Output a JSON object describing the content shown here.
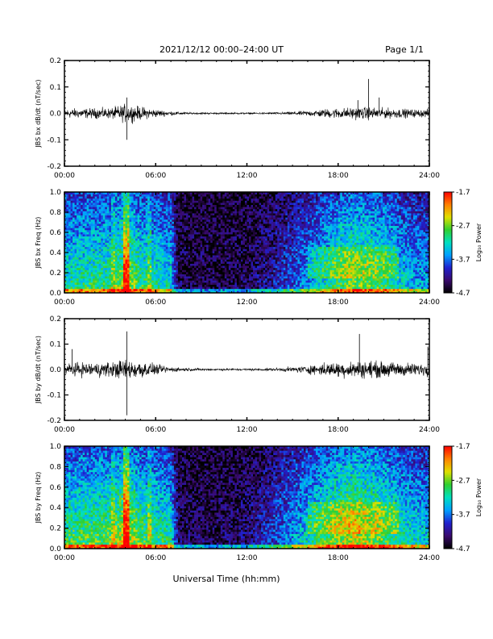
{
  "header": {
    "title": "2021/12/12  00:00–24:00 UT",
    "page": "Page 1/1"
  },
  "xlabel": "Universal Time (hh:mm)",
  "x_ticks": [
    "00:00",
    "06:00",
    "12:00",
    "18:00",
    "24:00"
  ],
  "colorbar": {
    "label": "Log₁₀ Power",
    "ticks": [
      "-1.7",
      "-2.7",
      "-3.7",
      "-4.7"
    ],
    "range": [
      -4.7,
      -1.7
    ],
    "colormap": [
      "#000000",
      "#3a0a6e",
      "#2020d0",
      "#00a0ff",
      "#00e0c0",
      "#30d030",
      "#e0e000",
      "#ff8000",
      "#ff0000"
    ]
  },
  "chart_data": [
    {
      "type": "line",
      "ylabel": "JBS bx dB/dt (nT/sec)",
      "y_ticks": [
        "0.2",
        "0.1",
        "0.0",
        "-0.1",
        "-0.2"
      ],
      "ylim": [
        -0.2,
        0.2
      ],
      "xlim_hours": [
        0,
        24
      ],
      "color": "#000000",
      "noise_envelope": {
        "hour": [
          0,
          3,
          4,
          5,
          6,
          7,
          8,
          10,
          12,
          14,
          15,
          16,
          17,
          18,
          19,
          20,
          21,
          22,
          23,
          24
        ],
        "amplitude": [
          0.018,
          0.02,
          0.035,
          0.025,
          0.015,
          0.008,
          0.004,
          0.003,
          0.003,
          0.004,
          0.006,
          0.01,
          0.016,
          0.02,
          0.022,
          0.024,
          0.02,
          0.018,
          0.015,
          0.015
        ]
      },
      "spikes": [
        {
          "hour": 4.1,
          "value": 0.06
        },
        {
          "hour": 4.1,
          "value": -0.1
        },
        {
          "hour": 20.0,
          "value": 0.13
        },
        {
          "hour": 20.7,
          "value": 0.06
        },
        {
          "hour": 19.3,
          "value": 0.05
        }
      ]
    },
    {
      "type": "heatmap",
      "ylabel": "JBS bx Freq (Hz)",
      "y_ticks": [
        "1.0",
        "0.8",
        "0.6",
        "0.4",
        "0.2",
        "0.0"
      ],
      "ylim": [
        0,
        1.0
      ],
      "xlim_hours": [
        0,
        24
      ],
      "activity": {
        "hour": [
          0,
          3,
          4,
          5,
          6,
          7,
          7.5,
          10,
          12,
          14,
          15,
          16,
          17,
          18,
          19,
          20,
          21,
          22,
          23,
          24
        ],
        "level": [
          0.55,
          0.6,
          0.75,
          0.6,
          0.55,
          0.5,
          0.1,
          0.08,
          0.1,
          0.22,
          0.3,
          0.4,
          0.5,
          0.62,
          0.68,
          0.65,
          0.6,
          0.5,
          0.42,
          0.4
        ]
      },
      "bright_columns": [
        {
          "hour": 4.1,
          "boost": 0.35
        },
        {
          "hour": 5.6,
          "boost": 0.15
        },
        {
          "hour": 3.2,
          "boost": 0.12
        }
      ]
    },
    {
      "type": "line",
      "ylabel": "JBS by dB/dt (nT/sec)",
      "y_ticks": [
        "0.2",
        "0.1",
        "0.0",
        "-0.1",
        "-0.2"
      ],
      "ylim": [
        -0.2,
        0.2
      ],
      "xlim_hours": [
        0,
        24
      ],
      "color": "#000000",
      "noise_envelope": {
        "hour": [
          0,
          3,
          4,
          5,
          6,
          7,
          8,
          10,
          12,
          14,
          15,
          16,
          17,
          18,
          19,
          20,
          21,
          22,
          23,
          24
        ],
        "amplitude": [
          0.025,
          0.03,
          0.04,
          0.035,
          0.02,
          0.01,
          0.006,
          0.004,
          0.004,
          0.006,
          0.01,
          0.016,
          0.025,
          0.03,
          0.032,
          0.035,
          0.03,
          0.028,
          0.025,
          0.025
        ]
      },
      "spikes": [
        {
          "hour": 4.1,
          "value": 0.15
        },
        {
          "hour": 4.1,
          "value": -0.18
        },
        {
          "hour": 19.4,
          "value": 0.14
        },
        {
          "hour": 23.9,
          "value": 0.09
        },
        {
          "hour": 0.5,
          "value": 0.08
        }
      ]
    },
    {
      "type": "heatmap",
      "ylabel": "JBS by Freq (Hz)",
      "y_ticks": [
        "1.0",
        "0.8",
        "0.6",
        "0.4",
        "0.2",
        "0.0"
      ],
      "ylim": [
        0,
        1.0
      ],
      "xlim_hours": [
        0,
        24
      ],
      "activity": {
        "hour": [
          0,
          3,
          4,
          5,
          6,
          7,
          7.5,
          10,
          12,
          14,
          15,
          16,
          17,
          18,
          19,
          20,
          21,
          22,
          23,
          24
        ],
        "level": [
          0.62,
          0.65,
          0.8,
          0.65,
          0.6,
          0.55,
          0.12,
          0.1,
          0.14,
          0.3,
          0.4,
          0.5,
          0.62,
          0.72,
          0.78,
          0.72,
          0.66,
          0.58,
          0.5,
          0.48
        ]
      },
      "bright_columns": [
        {
          "hour": 4.1,
          "boost": 0.35
        },
        {
          "hour": 5.6,
          "boost": 0.15
        },
        {
          "hour": 3.2,
          "boost": 0.12
        }
      ]
    }
  ]
}
